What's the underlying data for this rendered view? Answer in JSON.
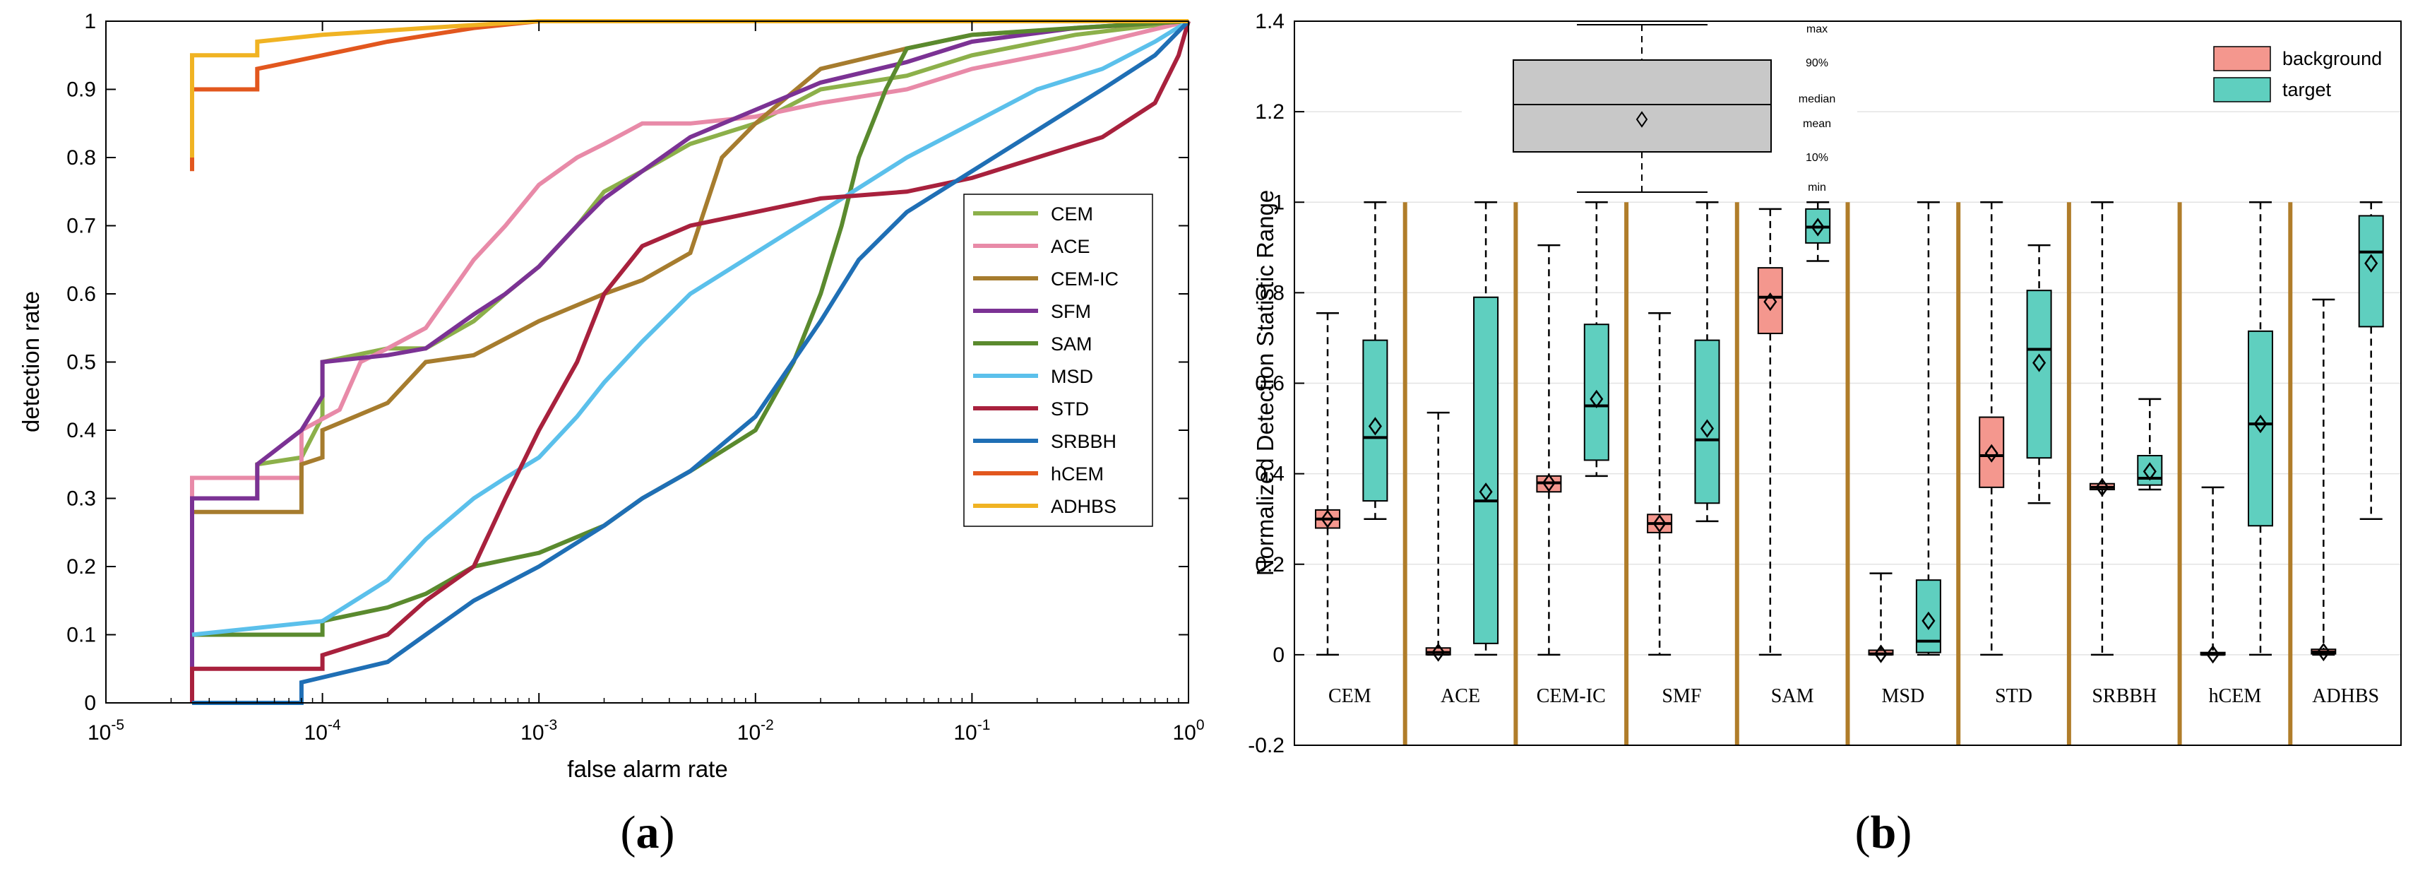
{
  "chart_data": [
    {
      "panel": "a",
      "panel_label_left": "(",
      "panel_label_letter": "a",
      "panel_label_right": ")",
      "type": "line",
      "title": "",
      "xlabel": "false alarm rate",
      "ylabel": "detection rate",
      "xscale": "log",
      "xlim": [
        1e-05,
        1
      ],
      "ylim": [
        0,
        1
      ],
      "x_ticks": [
        {
          "base": "10",
          "exp": "-5",
          "value": 1e-05
        },
        {
          "base": "10",
          "exp": "-4",
          "value": 0.0001
        },
        {
          "base": "10",
          "exp": "-3",
          "value": 0.001
        },
        {
          "base": "10",
          "exp": "-2",
          "value": 0.01
        },
        {
          "base": "10",
          "exp": "-1",
          "value": 0.1
        },
        {
          "base": "10",
          "exp": "0",
          "value": 1
        }
      ],
      "y_ticks": [
        "0",
        "0.1",
        "0.2",
        "0.3",
        "0.4",
        "0.5",
        "0.6",
        "0.7",
        "0.8",
        "0.9",
        "1"
      ],
      "legend_position": "center-right",
      "series": [
        {
          "name": "CEM",
          "color": "#8cb04a",
          "points": [
            [
              2.5e-05,
              0.1
            ],
            [
              2.5e-05,
              0.3
            ],
            [
              5e-05,
              0.3
            ],
            [
              5e-05,
              0.35
            ],
            [
              8e-05,
              0.36
            ],
            [
              0.0001,
              0.42
            ],
            [
              0.0001,
              0.5
            ],
            [
              0.0002,
              0.52
            ],
            [
              0.0003,
              0.52
            ],
            [
              0.0005,
              0.56
            ],
            [
              0.0007,
              0.6
            ],
            [
              0.001,
              0.64
            ],
            [
              0.0015,
              0.7
            ],
            [
              0.002,
              0.75
            ],
            [
              0.003,
              0.78
            ],
            [
              0.005,
              0.82
            ],
            [
              0.01,
              0.85
            ],
            [
              0.02,
              0.9
            ],
            [
              0.05,
              0.92
            ],
            [
              0.1,
              0.95
            ],
            [
              0.3,
              0.98
            ],
            [
              1,
              1
            ]
          ]
        },
        {
          "name": "ACE",
          "color": "#e88aa8",
          "points": [
            [
              2.5e-05,
              0.08
            ],
            [
              2.5e-05,
              0.33
            ],
            [
              8e-05,
              0.33
            ],
            [
              8e-05,
              0.4
            ],
            [
              0.00012,
              0.43
            ],
            [
              0.00015,
              0.5
            ],
            [
              0.0002,
              0.52
            ],
            [
              0.0003,
              0.55
            ],
            [
              0.0005,
              0.65
            ],
            [
              0.0007,
              0.7
            ],
            [
              0.001,
              0.76
            ],
            [
              0.0015,
              0.8
            ],
            [
              0.002,
              0.82
            ],
            [
              0.003,
              0.85
            ],
            [
              0.005,
              0.85
            ],
            [
              0.01,
              0.86
            ],
            [
              0.02,
              0.88
            ],
            [
              0.05,
              0.9
            ],
            [
              0.1,
              0.93
            ],
            [
              0.3,
              0.96
            ],
            [
              1,
              1
            ]
          ]
        },
        {
          "name": "CEM-IC",
          "color": "#a67c2e",
          "points": [
            [
              2.5e-05,
              0.07
            ],
            [
              2.5e-05,
              0.28
            ],
            [
              8e-05,
              0.28
            ],
            [
              8e-05,
              0.35
            ],
            [
              0.0001,
              0.36
            ],
            [
              0.0001,
              0.4
            ],
            [
              0.0002,
              0.44
            ],
            [
              0.0003,
              0.5
            ],
            [
              0.0005,
              0.51
            ],
            [
              0.001,
              0.56
            ],
            [
              0.002,
              0.6
            ],
            [
              0.003,
              0.62
            ],
            [
              0.005,
              0.66
            ],
            [
              0.007,
              0.8
            ],
            [
              0.01,
              0.85
            ],
            [
              0.02,
              0.93
            ],
            [
              0.05,
              0.96
            ],
            [
              0.1,
              0.98
            ],
            [
              1,
              1
            ]
          ]
        },
        {
          "name": "SFM",
          "color": "#7b3294",
          "points": [
            [
              2.5e-05,
              0
            ],
            [
              2.5e-05,
              0.3
            ],
            [
              5e-05,
              0.3
            ],
            [
              5e-05,
              0.35
            ],
            [
              8e-05,
              0.4
            ],
            [
              0.0001,
              0.45
            ],
            [
              0.0001,
              0.5
            ],
            [
              0.0002,
              0.51
            ],
            [
              0.0003,
              0.52
            ],
            [
              0.0005,
              0.57
            ],
            [
              0.0007,
              0.6
            ],
            [
              0.001,
              0.64
            ],
            [
              0.0015,
              0.7
            ],
            [
              0.002,
              0.74
            ],
            [
              0.003,
              0.78
            ],
            [
              0.005,
              0.83
            ],
            [
              0.01,
              0.87
            ],
            [
              0.02,
              0.91
            ],
            [
              0.05,
              0.94
            ],
            [
              0.1,
              0.97
            ],
            [
              0.3,
              0.99
            ],
            [
              1,
              1
            ]
          ]
        },
        {
          "name": "SAM",
          "color": "#5a8a2e",
          "points": [
            [
              2.5e-05,
              0.1
            ],
            [
              0.0001,
              0.1
            ],
            [
              0.0001,
              0.12
            ],
            [
              0.0002,
              0.14
            ],
            [
              0.0003,
              0.16
            ],
            [
              0.0005,
              0.2
            ],
            [
              0.001,
              0.22
            ],
            [
              0.002,
              0.26
            ],
            [
              0.003,
              0.3
            ],
            [
              0.005,
              0.34
            ],
            [
              0.01,
              0.4
            ],
            [
              0.015,
              0.5
            ],
            [
              0.02,
              0.6
            ],
            [
              0.025,
              0.7
            ],
            [
              0.03,
              0.8
            ],
            [
              0.04,
              0.9
            ],
            [
              0.05,
              0.96
            ],
            [
              0.1,
              0.98
            ],
            [
              0.3,
              0.99
            ],
            [
              1,
              1
            ]
          ]
        },
        {
          "name": "MSD",
          "color": "#5bc0eb",
          "points": [
            [
              2.5e-05,
              0.1
            ],
            [
              0.0001,
              0.12
            ],
            [
              0.0002,
              0.18
            ],
            [
              0.0003,
              0.24
            ],
            [
              0.0005,
              0.3
            ],
            [
              0.0007,
              0.33
            ],
            [
              0.001,
              0.36
            ],
            [
              0.0015,
              0.42
            ],
            [
              0.002,
              0.47
            ],
            [
              0.003,
              0.53
            ],
            [
              0.005,
              0.6
            ],
            [
              0.01,
              0.66
            ],
            [
              0.02,
              0.72
            ],
            [
              0.05,
              0.8
            ],
            [
              0.1,
              0.85
            ],
            [
              0.2,
              0.9
            ],
            [
              0.4,
              0.93
            ],
            [
              0.7,
              0.97
            ],
            [
              1,
              1
            ]
          ]
        },
        {
          "name": "STD",
          "color": "#a8213d",
          "points": [
            [
              2.5e-05,
              0
            ],
            [
              2.5e-05,
              0.05
            ],
            [
              0.0001,
              0.05
            ],
            [
              0.0001,
              0.07
            ],
            [
              0.0002,
              0.1
            ],
            [
              0.0003,
              0.15
            ],
            [
              0.0005,
              0.2
            ],
            [
              0.0007,
              0.3
            ],
            [
              0.001,
              0.4
            ],
            [
              0.0015,
              0.5
            ],
            [
              0.002,
              0.6
            ],
            [
              0.003,
              0.67
            ],
            [
              0.005,
              0.7
            ],
            [
              0.01,
              0.72
            ],
            [
              0.02,
              0.74
            ],
            [
              0.05,
              0.75
            ],
            [
              0.1,
              0.77
            ],
            [
              0.2,
              0.8
            ],
            [
              0.4,
              0.83
            ],
            [
              0.7,
              0.88
            ],
            [
              0.9,
              0.95
            ],
            [
              1,
              1
            ]
          ]
        },
        {
          "name": "SRBBH",
          "color": "#1f6fb5",
          "points": [
            [
              2.5e-05,
              0
            ],
            [
              8e-05,
              0
            ],
            [
              8e-05,
              0.03
            ],
            [
              0.0002,
              0.06
            ],
            [
              0.0003,
              0.1
            ],
            [
              0.0005,
              0.15
            ],
            [
              0.001,
              0.2
            ],
            [
              0.002,
              0.26
            ],
            [
              0.003,
              0.3
            ],
            [
              0.005,
              0.34
            ],
            [
              0.01,
              0.42
            ],
            [
              0.02,
              0.56
            ],
            [
              0.03,
              0.65
            ],
            [
              0.05,
              0.72
            ],
            [
              0.1,
              0.78
            ],
            [
              0.2,
              0.84
            ],
            [
              0.4,
              0.9
            ],
            [
              0.7,
              0.95
            ],
            [
              1,
              1
            ]
          ]
        },
        {
          "name": "hCEM",
          "color": "#e2571e",
          "points": [
            [
              2.5e-05,
              0.78
            ],
            [
              2.5e-05,
              0.9
            ],
            [
              5e-05,
              0.9
            ],
            [
              5e-05,
              0.93
            ],
            [
              0.0001,
              0.95
            ],
            [
              0.0002,
              0.97
            ],
            [
              0.0005,
              0.99
            ],
            [
              0.001,
              1
            ],
            [
              1,
              1
            ]
          ]
        },
        {
          "name": "ADHBS",
          "color": "#f0b323",
          "points": [
            [
              2.5e-05,
              0.8
            ],
            [
              2.5e-05,
              0.95
            ],
            [
              5e-05,
              0.95
            ],
            [
              5e-05,
              0.97
            ],
            [
              0.0001,
              0.98
            ],
            [
              0.0003,
              0.99
            ],
            [
              0.001,
              1
            ],
            [
              1,
              1
            ]
          ]
        }
      ]
    },
    {
      "panel": "b",
      "panel_label_left": "(",
      "panel_label_letter": "b",
      "panel_label_right": ")",
      "type": "box",
      "title": "",
      "ylabel": "Normalized Detection Statistic Range",
      "ylim": [
        -0.2,
        1.4
      ],
      "y_ticks": [
        "-0.2",
        "0",
        "0.2",
        "0.4",
        "0.6",
        "0.8",
        "1",
        "1.2",
        "1.4"
      ],
      "grid": true,
      "separator_color": "#b07d2a",
      "legend_position": "top-right",
      "legend": [
        {
          "name": "background",
          "color": "#f4978e"
        },
        {
          "name": "target",
          "color": "#5fcfbf"
        }
      ],
      "key_box": {
        "color": "#c8c8c8",
        "labels": [
          "max",
          "90%",
          "median",
          "mean",
          "10%",
          "min"
        ]
      },
      "categories": [
        "CEM",
        "ACE",
        "CEM-IC",
        "SMF",
        "SAM",
        "MSD",
        "STD",
        "SRBBH",
        "hCEM",
        "ADHBS"
      ],
      "groups": [
        {
          "background": {
            "min": 0,
            "q10": 0.28,
            "median": 0.3,
            "mean": 0.3,
            "q90": 0.32,
            "max": 0.755
          },
          "target": {
            "min": 0.3,
            "q10": 0.34,
            "median": 0.48,
            "mean": 0.505,
            "q90": 0.695,
            "max": 1
          }
        },
        {
          "background": {
            "min": 0,
            "q10": 0,
            "median": 0.005,
            "mean": 0.005,
            "q90": 0.015,
            "max": 0.535
          },
          "target": {
            "min": 0,
            "q10": 0.025,
            "median": 0.34,
            "mean": 0.36,
            "q90": 0.79,
            "max": 1
          }
        },
        {
          "background": {
            "min": 0,
            "q10": 0.36,
            "median": 0.38,
            "mean": 0.38,
            "q90": 0.395,
            "max": 0.905
          },
          "target": {
            "min": 0.395,
            "q10": 0.43,
            "median": 0.55,
            "mean": 0.565,
            "q90": 0.73,
            "max": 1
          }
        },
        {
          "background": {
            "min": 0,
            "q10": 0.27,
            "median": 0.29,
            "mean": 0.29,
            "q90": 0.31,
            "max": 0.755
          },
          "target": {
            "min": 0.295,
            "q10": 0.335,
            "median": 0.475,
            "mean": 0.5,
            "q90": 0.695,
            "max": 1
          }
        },
        {
          "background": {
            "min": 0,
            "q10": 0.71,
            "median": 0.79,
            "mean": 0.78,
            "q90": 0.855,
            "max": 0.985
          },
          "target": {
            "min": 0.87,
            "q10": 0.91,
            "median": 0.945,
            "mean": 0.945,
            "q90": 0.985,
            "max": 1
          }
        },
        {
          "background": {
            "min": 0,
            "q10": 0,
            "median": 0.002,
            "mean": 0.002,
            "q90": 0.01,
            "max": 0.18
          },
          "target": {
            "min": 0,
            "q10": 0.005,
            "median": 0.03,
            "mean": 0.075,
            "q90": 0.165,
            "max": 1
          }
        },
        {
          "background": {
            "min": 0,
            "q10": 0.37,
            "median": 0.44,
            "mean": 0.445,
            "q90": 0.525,
            "max": 1
          },
          "target": {
            "min": 0.335,
            "q10": 0.435,
            "median": 0.675,
            "mean": 0.645,
            "q90": 0.805,
            "max": 0.905
          }
        },
        {
          "background": {
            "min": 0,
            "q10": 0.365,
            "median": 0.37,
            "mean": 0.37,
            "q90": 0.378,
            "max": 1
          },
          "target": {
            "min": 0.365,
            "q10": 0.375,
            "median": 0.39,
            "mean": 0.405,
            "q90": 0.44,
            "max": 0.565
          }
        },
        {
          "background": {
            "min": 0,
            "q10": 0,
            "median": 0.001,
            "mean": 0.001,
            "q90": 0.005,
            "max": 0.37
          },
          "target": {
            "min": 0,
            "q10": 0.285,
            "median": 0.51,
            "mean": 0.51,
            "q90": 0.715,
            "max": 1
          }
        },
        {
          "background": {
            "min": 0,
            "q10": 0.002,
            "median": 0.006,
            "mean": 0.006,
            "q90": 0.012,
            "max": 0.785
          },
          "target": {
            "min": 0.3,
            "q10": 0.725,
            "median": 0.89,
            "mean": 0.865,
            "q90": 0.97,
            "max": 1
          }
        }
      ]
    }
  ]
}
